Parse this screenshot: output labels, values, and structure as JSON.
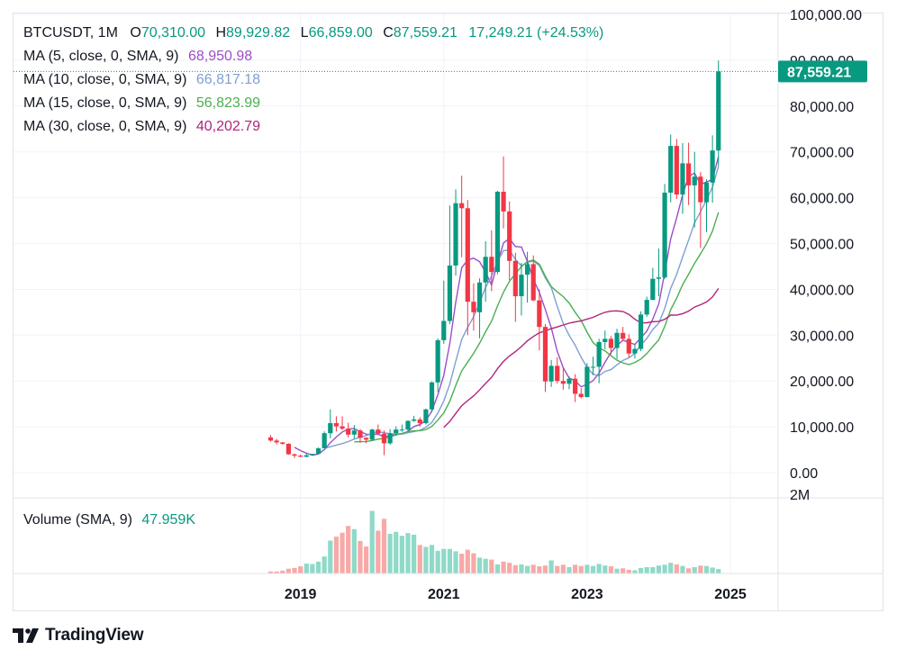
{
  "header": {
    "symbol": "BTCUSDT, 1M",
    "open_label": "O",
    "open": "70,310.00",
    "high_label": "H",
    "high": "89,929.82",
    "low_label": "L",
    "low": "66,859.00",
    "close_label": "C",
    "close": "87,559.21",
    "change": "17,249.21 (+24.53%)"
  },
  "indicators": [
    {
      "label": "MA (5, close, 0, SMA, 9)",
      "value": "68,950.98",
      "color": "#9c4ec9"
    },
    {
      "label": "MA (10, close, 0, SMA, 9)",
      "value": "66,817.18",
      "color": "#7f9fd3"
    },
    {
      "label": "MA (15, close, 0, SMA, 9)",
      "value": "56,823.99",
      "color": "#4caf50"
    },
    {
      "label": "MA (30, close, 0, SMA, 9)",
      "value": "40,202.79",
      "color": "#b0247b"
    }
  ],
  "volume_legend": {
    "label": "Volume (SMA, 9)",
    "value": "47.959K"
  },
  "price_axis": {
    "ticks": [
      "0.00",
      "10,000.00",
      "20,000.00",
      "30,000.00",
      "40,000.00",
      "50,000.00",
      "60,000.00",
      "70,000.00",
      "80,000.00",
      "90,000.00",
      "100,000.00"
    ],
    "tick_values": [
      0,
      10000,
      20000,
      30000,
      40000,
      50000,
      60000,
      70000,
      80000,
      90000,
      100000
    ],
    "last_price_label": "87,559.21",
    "last_price": 87559.21
  },
  "volume_axis": {
    "ticks": [
      "2M"
    ],
    "tick_values": [
      2000000
    ]
  },
  "time_axis": {
    "ticks": [
      "2019",
      "2021",
      "2023",
      "2025"
    ],
    "tick_months": [
      2019.0,
      2021.0,
      2023.0,
      2025.0
    ]
  },
  "colors": {
    "up": "#089981",
    "down": "#f23645",
    "up_vol": "#8fd9c8",
    "down_vol": "#f7a9a7",
    "grid": "#f0f3fa",
    "axis_border": "#e0e3eb"
  },
  "branding": {
    "text": "TradingView"
  },
  "chart_data": {
    "type": "candlestick",
    "symbol": "BTCUSDT",
    "interval": "1M",
    "ylim": [
      0,
      100000
    ],
    "grid": true,
    "x_start": "2018-08",
    "ohlc": [
      [
        7700,
        8200,
        6800,
        7000
      ],
      [
        7000,
        7400,
        6200,
        6600
      ],
      [
        6600,
        6700,
        6100,
        6300
      ],
      [
        6300,
        6400,
        3900,
        4000
      ],
      [
        4000,
        4200,
        3200,
        3700
      ],
      [
        3700,
        3900,
        3400,
        3450
      ],
      [
        3450,
        4200,
        3350,
        3800
      ],
      [
        3800,
        4100,
        3700,
        4100
      ],
      [
        4100,
        5500,
        4000,
        5300
      ],
      [
        5300,
        9000,
        5300,
        8600
      ],
      [
        8600,
        13800,
        7500,
        10800
      ],
      [
        10800,
        12300,
        9000,
        10100
      ],
      [
        10100,
        12300,
        9300,
        9600
      ],
      [
        9600,
        10900,
        7700,
        8300
      ],
      [
        8300,
        10400,
        7400,
        9200
      ],
      [
        9200,
        9500,
        6500,
        7600
      ],
      [
        7600,
        7700,
        6400,
        7200
      ],
      [
        7200,
        9600,
        6900,
        9400
      ],
      [
        9400,
        10500,
        8400,
        8500
      ],
      [
        8500,
        9200,
        3800,
        6400
      ],
      [
        6400,
        9500,
        6100,
        8600
      ],
      [
        8600,
        10100,
        8100,
        9400
      ],
      [
        9400,
        10500,
        8900,
        9400
      ],
      [
        9400,
        11400,
        8900,
        11300
      ],
      [
        11300,
        12400,
        11100,
        11600
      ],
      [
        11600,
        12100,
        10000,
        10800
      ],
      [
        10800,
        14000,
        10500,
        13800
      ],
      [
        13800,
        19900,
        13200,
        19700
      ],
      [
        19700,
        29300,
        17600,
        28900
      ],
      [
        28900,
        41900,
        28100,
        33100
      ],
      [
        33100,
        58300,
        32400,
        45200
      ],
      [
        45200,
        61800,
        43000,
        58800
      ],
      [
        58800,
        64800,
        47000,
        57700
      ],
      [
        57700,
        59500,
        30000,
        37300
      ],
      [
        37300,
        41300,
        31000,
        35000
      ],
      [
        35000,
        42400,
        29300,
        41500
      ],
      [
        41500,
        50500,
        37300,
        47100
      ],
      [
        47100,
        52900,
        39600,
        43800
      ],
      [
        43800,
        61500,
        43300,
        61300
      ],
      [
        61300,
        69000,
        53300,
        57000
      ],
      [
        57000,
        59200,
        42000,
        46200
      ],
      [
        46200,
        48000,
        32900,
        38500
      ],
      [
        38500,
        45800,
        34300,
        43200
      ],
      [
        43200,
        48200,
        37100,
        45500
      ],
      [
        45500,
        47400,
        37400,
        37600
      ],
      [
        37600,
        40000,
        26700,
        31800
      ],
      [
        31800,
        32400,
        17600,
        19900
      ],
      [
        19900,
        24600,
        18700,
        23300
      ],
      [
        23300,
        25200,
        19500,
        20000
      ],
      [
        20000,
        22800,
        18100,
        19400
      ],
      [
        19400,
        21000,
        18200,
        20500
      ],
      [
        20500,
        21500,
        15400,
        17200
      ],
      [
        17200,
        18400,
        16200,
        16500
      ],
      [
        16500,
        23900,
        16400,
        23100
      ],
      [
        23100,
        25300,
        21300,
        23100
      ],
      [
        23100,
        29200,
        19500,
        28500
      ],
      [
        28500,
        31000,
        26900,
        29200
      ],
      [
        29200,
        29800,
        25800,
        27200
      ],
      [
        27200,
        31400,
        24800,
        30500
      ],
      [
        30500,
        31800,
        28800,
        29200
      ],
      [
        29200,
        30200,
        25100,
        26000
      ],
      [
        26000,
        28000,
        24900,
        27000
      ],
      [
        27000,
        35200,
        26500,
        34500
      ],
      [
        34500,
        38400,
        34000,
        37700
      ],
      [
        37700,
        44700,
        37600,
        42300
      ],
      [
        42300,
        48900,
        38500,
        42600
      ],
      [
        42600,
        63000,
        42300,
        61100
      ],
      [
        61100,
        73800,
        59000,
        71300
      ],
      [
        71300,
        72800,
        59700,
        60700
      ],
      [
        60700,
        71900,
        56500,
        67500
      ],
      [
        67500,
        72000,
        58400,
        62700
      ],
      [
        62700,
        70000,
        53500,
        64600
      ],
      [
        64600,
        65600,
        49000,
        59000
      ],
      [
        59000,
        64000,
        52500,
        63300
      ],
      [
        63300,
        73600,
        58900,
        70300
      ],
      [
        70300,
        89930,
        66859,
        87559.21
      ]
    ],
    "volume": [
      0.05,
      0.05,
      0.07,
      0.12,
      0.14,
      0.18,
      0.25,
      0.24,
      0.3,
      0.43,
      0.83,
      0.93,
      1.03,
      1.2,
      1.12,
      0.82,
      0.68,
      1.58,
      1.08,
      1.38,
      1.0,
      1.05,
      0.95,
      1.02,
      0.98,
      0.72,
      0.67,
      0.72,
      0.57,
      0.62,
      0.62,
      0.56,
      0.5,
      0.6,
      0.51,
      0.4,
      0.37,
      0.35,
      0.23,
      0.3,
      0.27,
      0.21,
      0.23,
      0.19,
      0.22,
      0.18,
      0.2,
      0.33,
      0.19,
      0.22,
      0.16,
      0.22,
      0.19,
      0.22,
      0.19,
      0.24,
      0.2,
      0.18,
      0.12,
      0.13,
      0.09,
      0.08,
      0.14,
      0.16,
      0.16,
      0.2,
      0.22,
      0.27,
      0.23,
      0.19,
      0.13,
      0.16,
      0.2,
      0.19,
      0.15,
      0.11
    ],
    "moving_averages": [
      {
        "name": "MA (5, close, 0, SMA, 9)",
        "period": 5,
        "color": "#9c4ec9",
        "last": 68950.98
      },
      {
        "name": "MA (10, close, 0, SMA, 9)",
        "period": 10,
        "color": "#7f9fd3",
        "last": 66817.18
      },
      {
        "name": "MA (15, close, 0, SMA, 9)",
        "period": 15,
        "color": "#4caf50",
        "last": 56823.99
      },
      {
        "name": "MA (30, close, 0, SMA, 9)",
        "period": 30,
        "color": "#b0247b",
        "last": 40202.79
      }
    ],
    "volume_ma_last": "47.959K"
  }
}
